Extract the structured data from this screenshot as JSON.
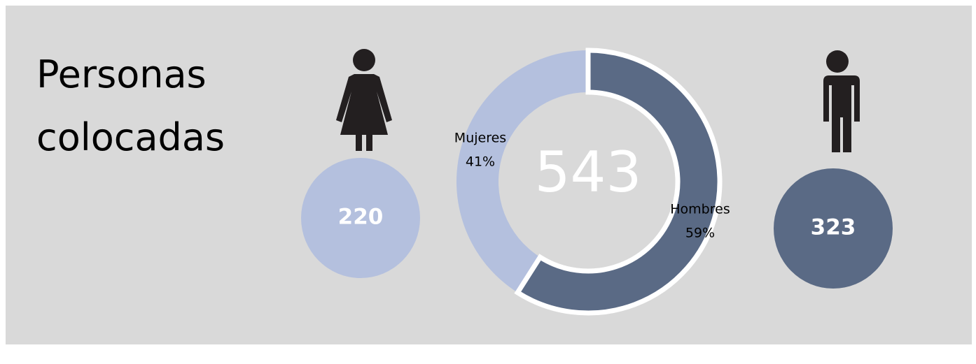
{
  "chart_data": {
    "type": "donut",
    "title": "Personas colocadas",
    "categories": [
      "Mujeres",
      "Hombres"
    ],
    "values": [
      41,
      59
    ],
    "value_labels": [
      "41%",
      "59%"
    ],
    "colors": [
      "#b4c0de",
      "#5a6a85"
    ],
    "counts": [
      220,
      323
    ],
    "total": 543
  }
}
